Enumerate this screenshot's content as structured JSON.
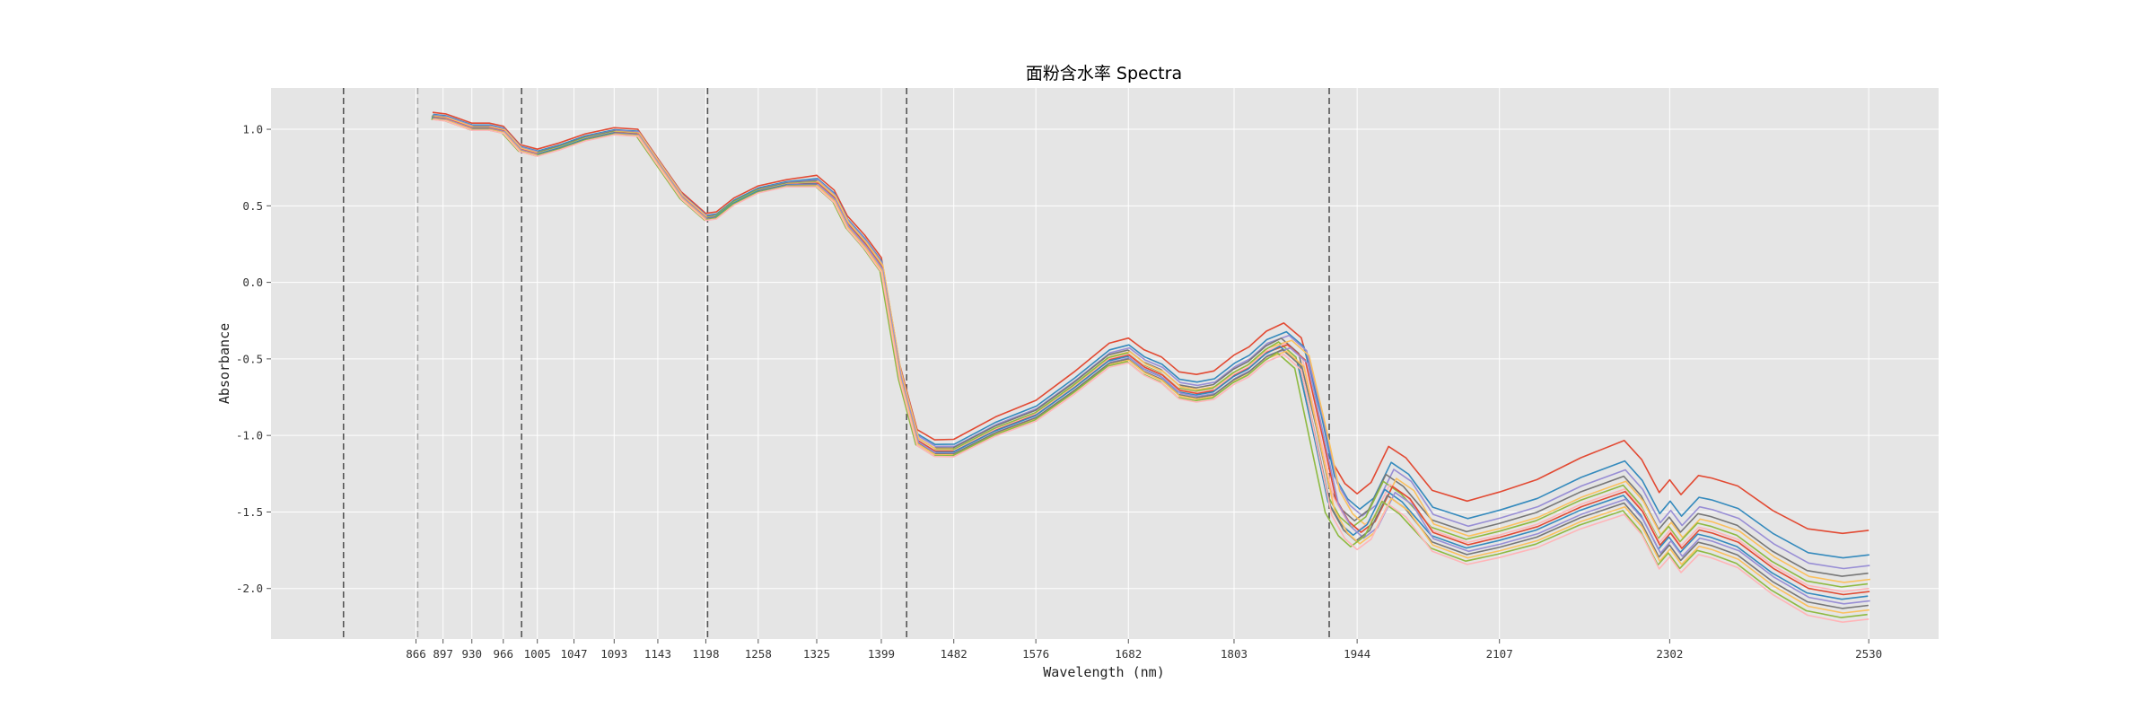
{
  "chart_data": {
    "type": "line",
    "title": "面粉含水率 Spectra",
    "xlabel": "Wavelength (nm)",
    "ylabel": "Absorbance",
    "xlim": [
      700,
      2610
    ],
    "ylim": [
      -2.33,
      1.27
    ],
    "x_ticks": [
      866,
      897,
      930,
      966,
      1005,
      1047,
      1093,
      1143,
      1198,
      1258,
      1325,
      1399,
      1482,
      1576,
      1682,
      1803,
      1944,
      2107,
      2302,
      2530
    ],
    "y_ticks": [
      1.0,
      0.5,
      0.0,
      -0.5,
      -1.0,
      -1.5,
      -2.0
    ],
    "grid": true,
    "vlines": [
      {
        "x": 783,
        "style": "dashed",
        "color": "#555555"
      },
      {
        "x": 868,
        "style": "dashed",
        "color": "#aaaaaa"
      },
      {
        "x": 987,
        "style": "dashed",
        "color": "#555555"
      },
      {
        "x": 1200,
        "style": "dashed",
        "color": "#555555"
      },
      {
        "x": 1428,
        "style": "dashed",
        "color": "#555555"
      },
      {
        "x": 1912,
        "style": "dashed",
        "color": "#555555"
      }
    ],
    "series_colors": [
      "#e24a33",
      "#348abd",
      "#988ed5",
      "#777777",
      "#fbc15e",
      "#8eba42",
      "#ffb5b8"
    ],
    "series_count": 14,
    "base_series": {
      "x": [
        885,
        900,
        915,
        930,
        950,
        966,
        985,
        1005,
        1030,
        1060,
        1093,
        1120,
        1143,
        1170,
        1198,
        1210,
        1230,
        1258,
        1290,
        1325,
        1345,
        1360,
        1380,
        1399,
        1420,
        1440,
        1460,
        1482,
        1530,
        1576,
        1620,
        1660,
        1682,
        1700,
        1720,
        1740,
        1760,
        1780,
        1803,
        1820,
        1840,
        1860,
        1880,
        1900,
        1915,
        1930,
        1944,
        1960,
        1980,
        2000,
        2030,
        2070,
        2107,
        2150,
        2200,
        2250,
        2270,
        2290,
        2302,
        2315,
        2335,
        2350,
        2380,
        2420,
        2460,
        2500,
        2530
      ],
      "y": [
        1.08,
        1.07,
        1.04,
        1.01,
        1.01,
        0.99,
        0.87,
        0.84,
        0.88,
        0.94,
        0.98,
        0.97,
        0.78,
        0.56,
        0.42,
        0.43,
        0.52,
        0.6,
        0.64,
        0.65,
        0.55,
        0.38,
        0.25,
        0.1,
        -0.6,
        -1.03,
        -1.1,
        -1.1,
        -0.96,
        -0.86,
        -0.68,
        -0.5,
        -0.47,
        -0.55,
        -0.6,
        -0.7,
        -0.72,
        -0.7,
        -0.6,
        -0.55,
        -0.45,
        -0.4,
        -0.5,
        -1.0,
        -1.4,
        -1.55,
        -1.62,
        -1.55,
        -1.32,
        -1.4,
        -1.62,
        -1.7,
        -1.65,
        -1.58,
        -1.45,
        -1.35,
        -1.48,
        -1.7,
        -1.62,
        -1.72,
        -1.6,
        -1.62,
        -1.68,
        -1.85,
        -1.98,
        -2.02,
        -2.0
      ]
    },
    "series_offsets": [
      0.38,
      0.22,
      0.15,
      0.1,
      0.06,
      0.03,
      0.0,
      -0.02,
      -0.05,
      -0.08,
      -0.11,
      -0.14,
      -0.17,
      -0.2
    ],
    "series_shifts": [
      0,
      2,
      4,
      -2,
      6,
      -4,
      1,
      3,
      -3,
      5,
      -1,
      2,
      -5,
      0
    ]
  }
}
